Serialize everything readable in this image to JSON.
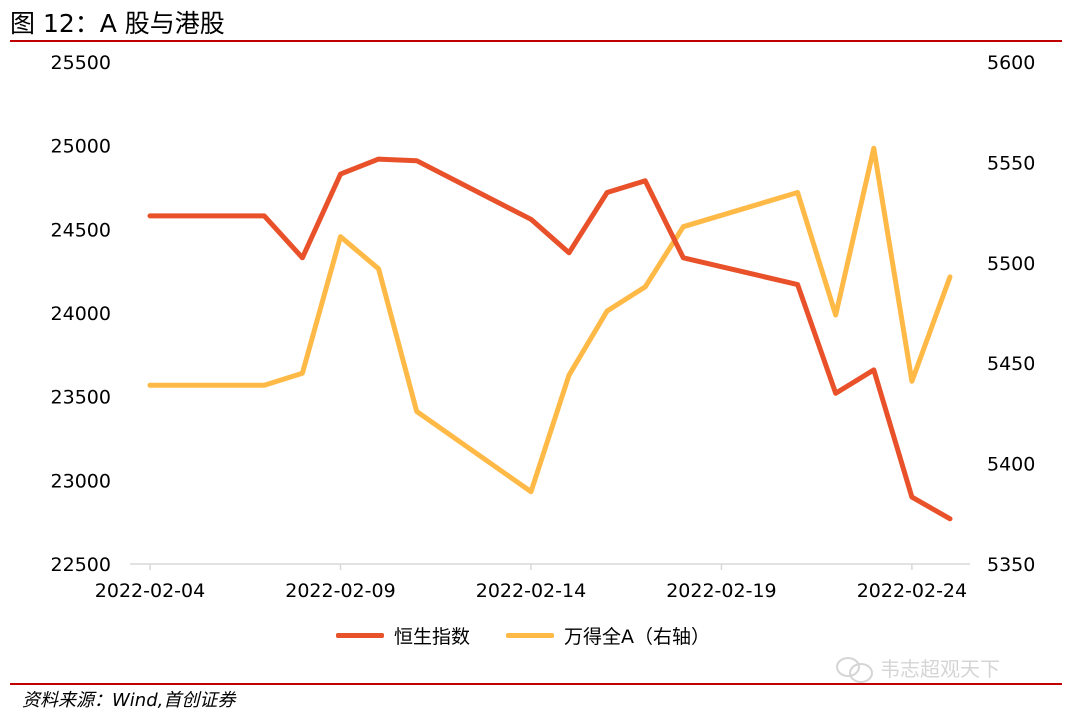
{
  "header": {
    "title": "图 12：A 股与港股"
  },
  "legend": {
    "hsi_label": "恒生指数",
    "wind_label": "万得全A（右轴）"
  },
  "footer": {
    "source": "资料来源：Wind,首创证券",
    "watermark": "韦志超观天下"
  },
  "colors": {
    "hsi": "#e8512a",
    "wind": "#ffb947",
    "rule": "#c00000"
  },
  "chart_data": {
    "type": "line",
    "x_tick_labels": [
      "2022-02-04",
      "2022-02-09",
      "2022-02-14",
      "2022-02-19",
      "2022-02-24"
    ],
    "x": [
      "2022-02-04",
      "2022-02-07",
      "2022-02-08",
      "2022-02-09",
      "2022-02-10",
      "2022-02-11",
      "2022-02-14",
      "2022-02-15",
      "2022-02-16",
      "2022-02-17",
      "2022-02-18",
      "2022-02-21",
      "2022-02-22",
      "2022-02-23",
      "2022-02-24",
      "2022-02-25"
    ],
    "xlim": [
      "2022-02-04",
      "2022-02-25"
    ],
    "y_left": {
      "ylim": [
        22500,
        25500
      ],
      "ticks": [
        25500,
        25000,
        24500,
        24000,
        23500,
        23000,
        22500
      ]
    },
    "y_right": {
      "ylim": [
        5350,
        5600
      ],
      "ticks": [
        5600,
        5550,
        5500,
        5450,
        5400,
        5350
      ]
    },
    "series": [
      {
        "name": "恒生指数",
        "axis": "left",
        "values": [
          24580,
          24580,
          24330,
          24830,
          24920,
          24910,
          24560,
          24360,
          24720,
          24790,
          24330,
          24170,
          23520,
          23660,
          22900,
          22770
        ]
      },
      {
        "name": "万得全A（右轴）",
        "axis": "right",
        "values": [
          5439,
          5439,
          5445,
          5513,
          5497,
          5426,
          5386,
          5444,
          5476,
          5488,
          5518,
          5535,
          5474,
          5557,
          5441,
          5493
        ]
      }
    ],
    "grid": false,
    "legend_position": "bottom"
  }
}
